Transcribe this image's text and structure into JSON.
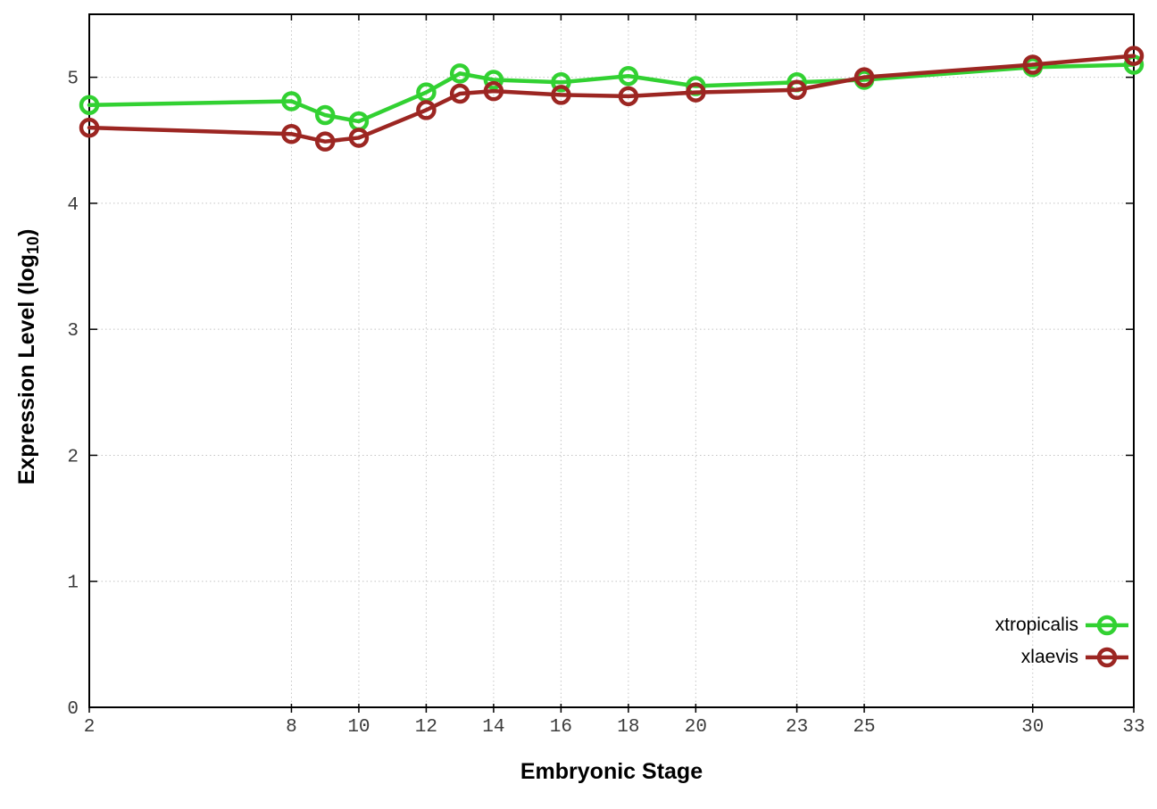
{
  "chart_data": {
    "type": "line",
    "title": "",
    "xlabel": "Embryonic Stage",
    "ylabel": "Expression Level (log10)",
    "ylabel_parts": {
      "pre": "Expression Level (log",
      "sub": "10",
      "post": ")"
    },
    "x": [
      2,
      8,
      9,
      10,
      12,
      13,
      14,
      16,
      18,
      20,
      23,
      25,
      30,
      33
    ],
    "series": [
      {
        "name": "xtropicalis",
        "color": "#32d132",
        "values": [
          4.78,
          4.81,
          4.7,
          4.65,
          4.88,
          5.03,
          4.98,
          4.96,
          5.01,
          4.93,
          4.96,
          4.98,
          5.08,
          5.1
        ]
      },
      {
        "name": "xlaevis",
        "color": "#9c2622",
        "values": [
          4.6,
          4.55,
          4.49,
          4.52,
          4.74,
          4.87,
          4.89,
          4.86,
          4.85,
          4.88,
          4.9,
          5.0,
          5.1,
          5.17
        ]
      }
    ],
    "x_ticks": [
      2,
      8,
      10,
      12,
      14,
      16,
      18,
      20,
      23,
      25,
      30,
      33
    ],
    "y_ticks": [
      0,
      1,
      2,
      3,
      4,
      5
    ],
    "xlim": [
      2,
      33
    ],
    "ylim": [
      0,
      5.5
    ],
    "grid": true,
    "grid_color": "#c4c4c4",
    "border_color": "#000000",
    "tick_label_color": "#3c3c3c",
    "legend_position": "bottom-right",
    "marker": "open-circle",
    "line_width": 4.5,
    "marker_radius": 9
  }
}
